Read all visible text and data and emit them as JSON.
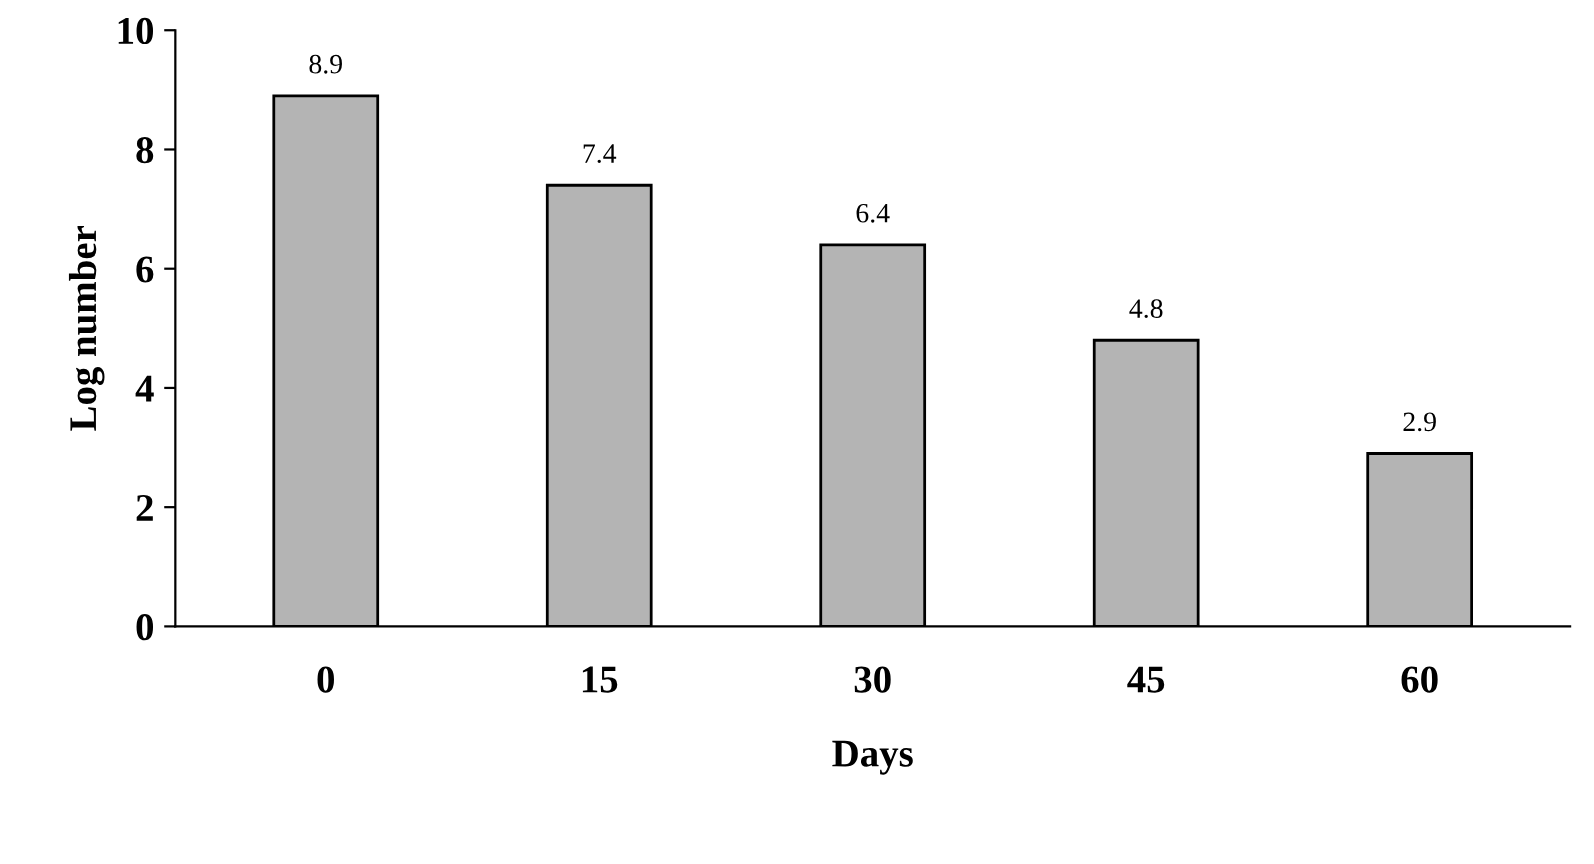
{
  "chart_data": {
    "type": "bar",
    "xlabel": "Days",
    "ylabel": "Log number",
    "categories": [
      "0",
      "15",
      "30",
      "45",
      "60"
    ],
    "values": [
      8.9,
      7.4,
      6.4,
      4.8,
      2.9
    ],
    "color": "#b4b4b4",
    "ylim": [
      0,
      10
    ],
    "yticks": [
      0,
      2,
      4,
      6,
      8,
      10
    ],
    "data_labels": true,
    "grid": false,
    "legend": false
  }
}
